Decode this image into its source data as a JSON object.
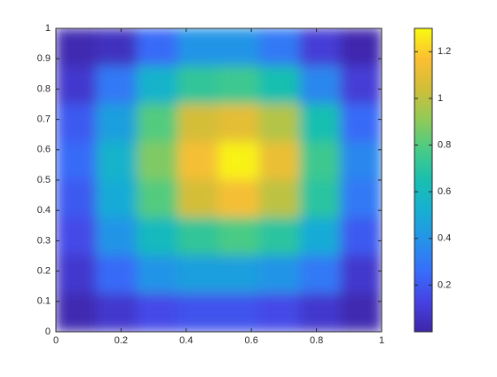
{
  "chart_data": {
    "type": "heatmap",
    "title": "",
    "xlabel": "",
    "ylabel": "",
    "xlim": [
      0,
      1
    ],
    "ylim": [
      0,
      1
    ],
    "grid": false,
    "x_ticks": [
      "0",
      "0.2",
      "0.4",
      "0.6",
      "0.8",
      "1"
    ],
    "y_ticks": [
      "0",
      "0.1",
      "0.2",
      "0.3",
      "0.4",
      "0.5",
      "0.6",
      "0.7",
      "0.8",
      "0.9",
      "1"
    ],
    "colorbar": {
      "range": [
        0,
        1.3
      ],
      "ticks": [
        "0.2",
        "0.4",
        "0.6",
        "0.8",
        "1",
        "1.2"
      ],
      "colormap": "parula"
    },
    "shading": "interp",
    "grid_size": [
      8,
      8
    ],
    "values_top_to_bottom": [
      [
        0.02,
        0.05,
        0.25,
        0.4,
        0.4,
        0.3,
        0.1,
        0.01
      ],
      [
        0.08,
        0.3,
        0.55,
        0.72,
        0.75,
        0.65,
        0.35,
        0.1
      ],
      [
        0.2,
        0.45,
        0.8,
        1.05,
        1.1,
        0.98,
        0.65,
        0.25
      ],
      [
        0.25,
        0.55,
        0.88,
        1.15,
        1.28,
        1.12,
        0.75,
        0.35
      ],
      [
        0.2,
        0.5,
        0.8,
        1.05,
        1.15,
        1.0,
        0.7,
        0.3
      ],
      [
        0.15,
        0.4,
        0.6,
        0.72,
        0.78,
        0.7,
        0.5,
        0.2
      ],
      [
        0.08,
        0.25,
        0.4,
        0.45,
        0.45,
        0.4,
        0.3,
        0.08
      ],
      [
        0.02,
        0.08,
        0.15,
        0.18,
        0.18,
        0.15,
        0.08,
        0.02
      ]
    ]
  }
}
